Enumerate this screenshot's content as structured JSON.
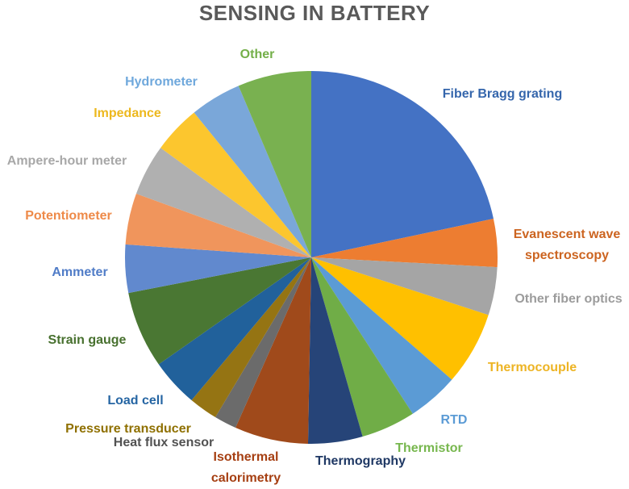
{
  "title": "SENSING IN BATTERY",
  "chart_data": {
    "type": "pie",
    "title": "SENSING IN BATTERY",
    "legend": "none",
    "labels_position": "outside, text colored to match slice",
    "start_angle_deg_from_top_clockwise": 0,
    "slices": [
      {
        "id": "fiber-bragg-grating",
        "label": "Fiber Bragg grating",
        "lines": [
          "Fiber Bragg grating"
        ],
        "deg": 78,
        "pct": 21.7,
        "color": "#4472C4",
        "label_color": "#3566AC",
        "label_x": 623,
        "label_y": 117
      },
      {
        "id": "evanescent-wave-spectroscopy",
        "label": "Evanescent wave spectroscopy",
        "lines": [
          "Evanescent wave",
          "spectroscopy"
        ],
        "deg": 15,
        "pct": 4.2,
        "color": "#ED7D31",
        "label_color": "#CC6420",
        "label_x": 703,
        "label_y": 304
      },
      {
        "id": "other-fiber-optics",
        "label": "Other fiber optics",
        "lines": [
          "Other fiber optics"
        ],
        "deg": 15,
        "pct": 4.2,
        "color": "#A5A5A5",
        "label_color": "#9C9C9C",
        "label_x": 705,
        "label_y": 371
      },
      {
        "id": "thermocouple",
        "label": "Thermocouple",
        "lines": [
          "Thermocouple"
        ],
        "deg": 23,
        "pct": 6.4,
        "color": "#FFC000",
        "label_color": "#EDB424",
        "label_x": 660,
        "label_y": 456
      },
      {
        "id": "rtd",
        "label": "RTD",
        "lines": [
          "RTD"
        ],
        "deg": 16,
        "pct": 4.4,
        "color": "#5B9BD5",
        "label_color": "#5B9BD5",
        "label_x": 563,
        "label_y": 521
      },
      {
        "id": "thermistor",
        "label": "Thermistor",
        "lines": [
          "Thermistor"
        ],
        "deg": 17,
        "pct": 4.7,
        "color": "#70AD47",
        "label_color": "#77B74E",
        "label_x": 532,
        "label_y": 556
      },
      {
        "id": "thermography",
        "label": "Thermography",
        "lines": [
          "Thermography"
        ],
        "deg": 17,
        "pct": 4.7,
        "color": "#264478",
        "label_color": "#1F3864",
        "label_x": 447,
        "label_y": 572
      },
      {
        "id": "isothermal-calorimetry",
        "label": "Isothermal calorimetry",
        "lines": [
          "Isothermal",
          "calorimetry"
        ],
        "deg": 23,
        "pct": 6.4,
        "color": "#A04A1B",
        "label_color": "#A63F12",
        "label_x": 305,
        "label_y": 580
      },
      {
        "id": "heat-flux-sensor",
        "label": "Heat flux sensor",
        "lines": [
          "Heat flux sensor"
        ],
        "deg": 7,
        "pct": 1.9,
        "color": "#6B6B6B",
        "label_color": "#525252",
        "label_x": 203,
        "label_y": 549
      },
      {
        "id": "pressure-transducer",
        "label": "Pressure transducer",
        "lines": [
          "Pressure transducer"
        ],
        "deg": 9,
        "pct": 2.5,
        "color": "#957413",
        "label_color": "#8F7000",
        "label_x": 159,
        "label_y": 532
      },
      {
        "id": "load-cell",
        "label": "Load cell",
        "lines": [
          "Load cell"
        ],
        "deg": 15,
        "pct": 4.2,
        "color": "#21619B",
        "label_color": "#2565A3",
        "label_x": 168,
        "label_y": 497
      },
      {
        "id": "strain-gauge",
        "label": "Strain gauge",
        "lines": [
          "Strain gauge"
        ],
        "deg": 24,
        "pct": 6.7,
        "color": "#4A7733",
        "label_color": "#47702E",
        "label_x": 108,
        "label_y": 422
      },
      {
        "id": "ammeter",
        "label": "Ammeter",
        "lines": [
          "Ammeter"
        ],
        "deg": 15,
        "pct": 4.2,
        "color": "#6189CE",
        "label_color": "#507CC7",
        "label_x": 99,
        "label_y": 338
      },
      {
        "id": "potentiometer",
        "label": "Potentiometer",
        "lines": [
          "Potentiometer"
        ],
        "deg": 16,
        "pct": 4.4,
        "color": "#F0955C",
        "label_color": "#EE8A49",
        "label_x": 85,
        "label_y": 268
      },
      {
        "id": "ampere-hour-meter",
        "label": "Ampere-hour meter",
        "lines": [
          "Ampere-hour meter"
        ],
        "deg": 16,
        "pct": 4.4,
        "color": "#B0B0B0",
        "label_color": "#A8A8A8",
        "label_x": 83,
        "label_y": 200
      },
      {
        "id": "impedance",
        "label": "Impedance",
        "lines": [
          "Impedance"
        ],
        "deg": 15,
        "pct": 4.2,
        "color": "#FCC62E",
        "label_color": "#EDB81E",
        "label_x": 158,
        "label_y": 141
      },
      {
        "id": "hydrometer",
        "label": "Hydrometer",
        "lines": [
          "Hydrometer"
        ],
        "deg": 16,
        "pct": 4.4,
        "color": "#7AA7D9",
        "label_color": "#6FA8DC",
        "label_x": 200,
        "label_y": 102
      },
      {
        "id": "other",
        "label": "Other",
        "lines": [
          "Other"
        ],
        "deg": 23,
        "pct": 6.4,
        "color": "#79B150",
        "label_color": "#74AF49",
        "label_x": 319,
        "label_y": 68
      }
    ]
  }
}
